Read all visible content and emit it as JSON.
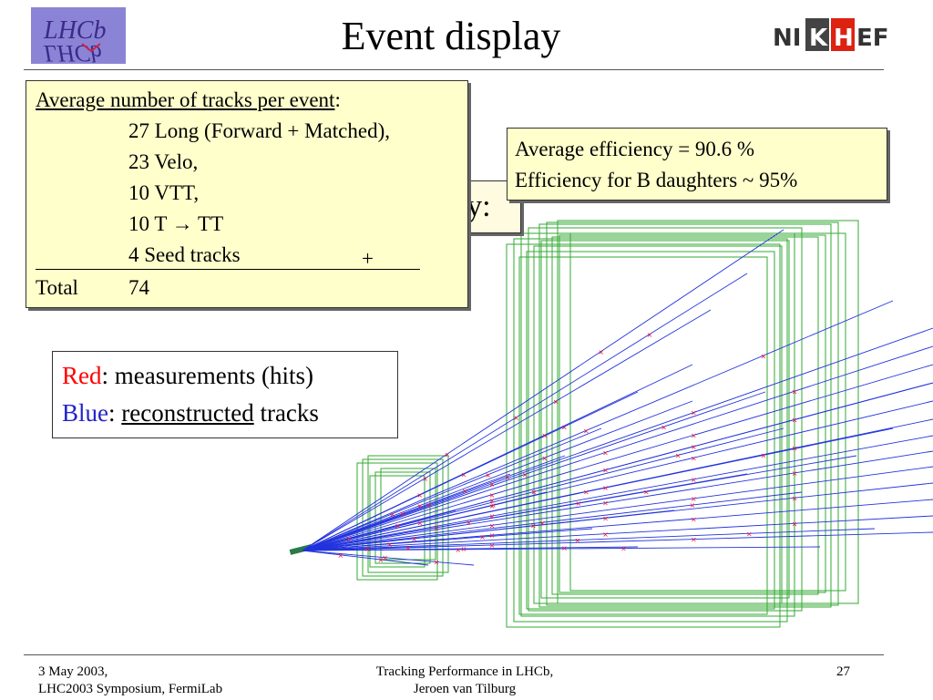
{
  "slide": {
    "title": "Event display",
    "logo_left_text": "LHCb",
    "logo_right_text": "NIKHEF"
  },
  "tracks_box": {
    "heading": "Average number of tracks per event",
    "colon": ":",
    "rows": [
      "27 Long (Forward + Matched),",
      "23 Velo,",
      "10 VTT,",
      "10 T → TT",
      "4 Seed tracks"
    ],
    "plus": "+",
    "total_label": "Total",
    "total_value": "74"
  },
  "hidden_text": "cy:",
  "efficiency_box": {
    "line1": "Average efficiency = 90.6 %",
    "line2": "Efficiency for B daughters ~ 95%"
  },
  "legend": {
    "red_word": "Red",
    "red_rest": ": measurements (hits)",
    "blue_word": "Blue",
    "blue_colon": ":",
    "blue_underlined": "reconstructed",
    "blue_rest": " tracks",
    "red_color": "#ff0000",
    "blue_color": "#2222cc"
  },
  "footer": {
    "left_line1": "3 May 2003,",
    "left_line2": "LHC2003 Symposium, FermiLab",
    "center_line1": "Tracking Performance in LHCb,",
    "center_line2": "Jeroen van Tilburg",
    "page_number": "27"
  },
  "colors": {
    "detector": "#33aa33",
    "track": "#2233dd",
    "hit": "#ee1133",
    "box_fill": "#ffffcc"
  }
}
